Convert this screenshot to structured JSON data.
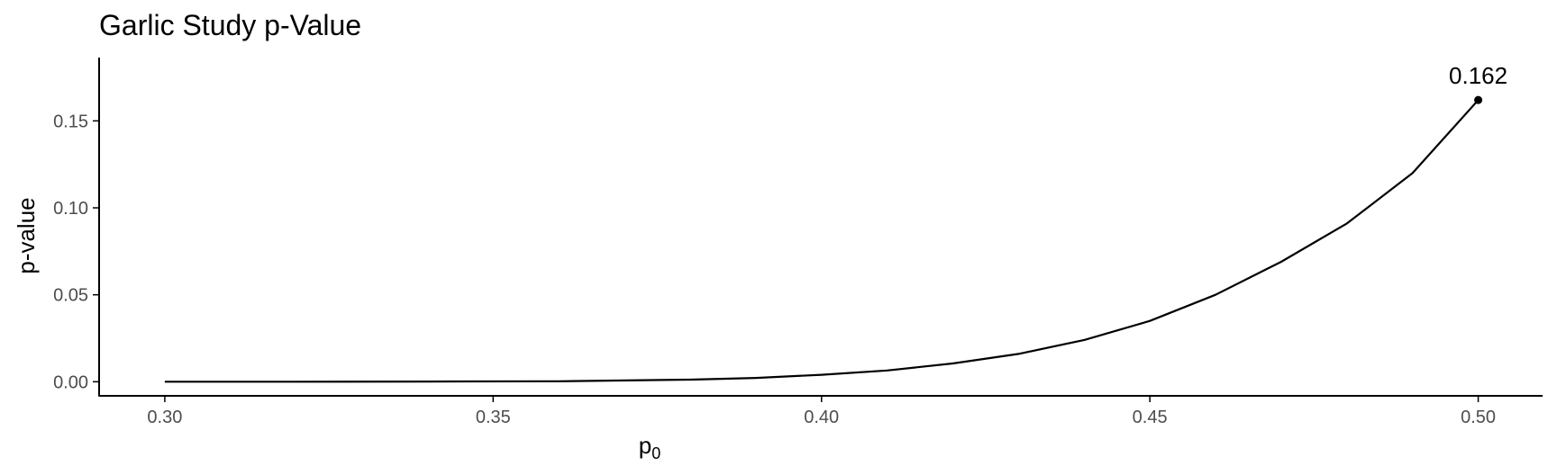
{
  "chart_data": {
    "type": "line",
    "title": "Garlic Study p-Value",
    "xlabel_main": "p",
    "xlabel_sub": "0",
    "ylabel": "p-value",
    "xlim": [
      0.29,
      0.5098
    ],
    "ylim": [
      -0.0081,
      0.1864
    ],
    "x_ticks": [
      0.3,
      0.35,
      0.4,
      0.45,
      0.5
    ],
    "x_tick_labels": [
      "0.30",
      "0.35",
      "0.40",
      "0.45",
      "0.50"
    ],
    "y_ticks": [
      0.0,
      0.05,
      0.1,
      0.15
    ],
    "y_tick_labels": [
      "0.00",
      "0.05",
      "0.10",
      "0.15"
    ],
    "grid": false,
    "series": [
      {
        "x": [
          0.3,
          0.32,
          0.34,
          0.36,
          0.38,
          0.39,
          0.4,
          0.41,
          0.42,
          0.43,
          0.44,
          0.45,
          0.46,
          0.47,
          0.48,
          0.49,
          0.5
        ],
        "y": [
          0.0,
          0.0,
          0.0001,
          0.0003,
          0.0012,
          0.0022,
          0.004,
          0.0065,
          0.0105,
          0.016,
          0.024,
          0.035,
          0.05,
          0.069,
          0.091,
          0.12,
          0.162
        ]
      }
    ],
    "annotations": [
      {
        "x": 0.5,
        "y": 0.162,
        "label": "0.162"
      }
    ],
    "colors": {
      "line": "#000000",
      "axis": "#000000",
      "tick_text": "#4d4d4d"
    }
  }
}
